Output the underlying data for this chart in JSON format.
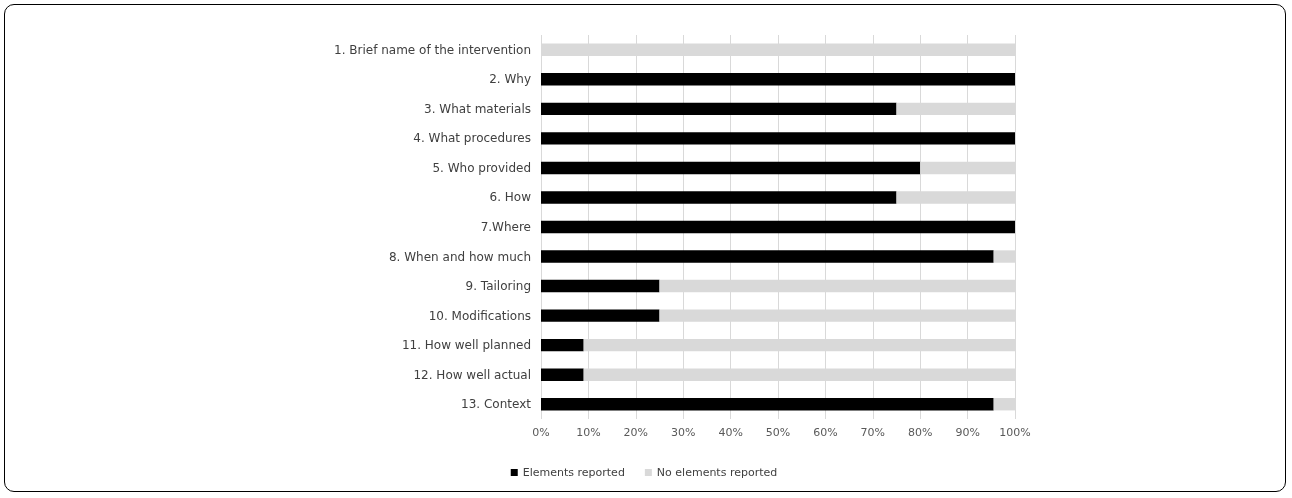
{
  "chart_data": {
    "type": "bar",
    "orientation": "horizontal",
    "stacked": true,
    "categories": [
      "1. Brief name of the intervention",
      "2. Why",
      "3. What materials",
      "4. What procedures",
      "5. Who provided",
      "6. How",
      "7.Where",
      "8. When and how much",
      "9. Tailoring",
      "10. Modifications",
      "11. How well planned",
      "12. How well actual",
      "13. Context"
    ],
    "series": [
      {
        "name": "Elements reported",
        "color": "#000000",
        "values": [
          0,
          100,
          75,
          100,
          80,
          75,
          100,
          95.5,
          25,
          25,
          9,
          9,
          95.5
        ]
      },
      {
        "name": "No elements reported",
        "color": "#d9d9d9",
        "values": [
          100,
          0,
          25,
          0,
          20,
          25,
          0,
          4.5,
          75,
          75,
          91,
          91,
          4.5
        ]
      }
    ],
    "xlim": [
      0,
      100
    ],
    "xticks": [
      {
        "value": 0,
        "label": "0%"
      },
      {
        "value": 10,
        "label": "10%"
      },
      {
        "value": 20,
        "label": "20%"
      },
      {
        "value": 30,
        "label": "30%"
      },
      {
        "value": 40,
        "label": "40%"
      },
      {
        "value": 50,
        "label": "50%"
      },
      {
        "value": 60,
        "label": "60%"
      },
      {
        "value": 70,
        "label": "70%"
      },
      {
        "value": 80,
        "label": "80%"
      },
      {
        "value": 90,
        "label": "90%"
      },
      {
        "value": 100,
        "label": "100%"
      }
    ],
    "grid": "x",
    "legend": "bottom"
  }
}
